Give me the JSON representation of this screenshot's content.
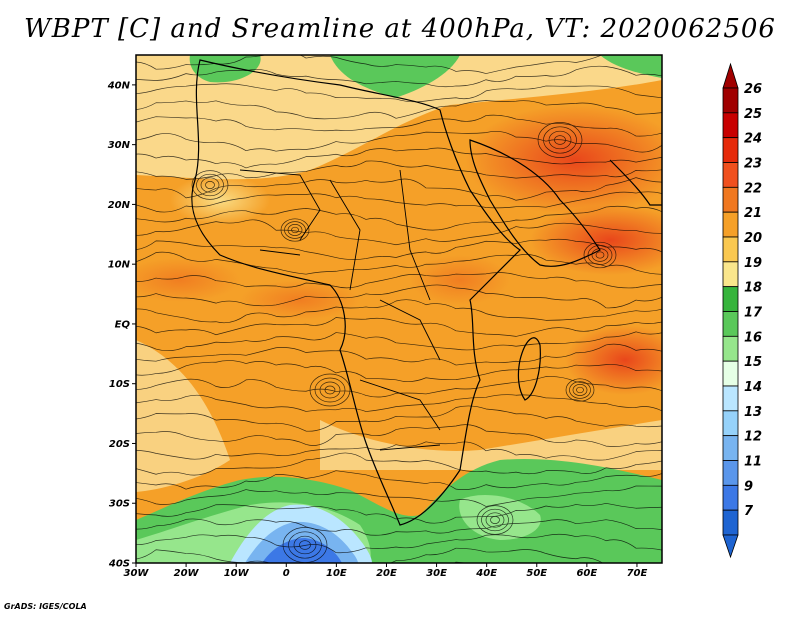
{
  "title": "WBPT [C] and Sreamline at 400hPa, VT: 2020062506",
  "credit": "GrADS: IGES/COLA",
  "map": {
    "lon_range": [
      -30,
      75
    ],
    "lat_range": [
      -40,
      45
    ],
    "lat_ticks": [
      {
        "value": 40,
        "label": "40N"
      },
      {
        "value": 30,
        "label": "30N"
      },
      {
        "value": 20,
        "label": "20N"
      },
      {
        "value": 10,
        "label": "10N"
      },
      {
        "value": 0,
        "label": "EQ"
      },
      {
        "value": -10,
        "label": "10S"
      },
      {
        "value": -20,
        "label": "20S"
      },
      {
        "value": -30,
        "label": "30S"
      },
      {
        "value": -40,
        "label": "40S"
      }
    ],
    "lon_ticks": [
      {
        "value": -30,
        "label": "30W"
      },
      {
        "value": -20,
        "label": "20W"
      },
      {
        "value": -10,
        "label": "10W"
      },
      {
        "value": 0,
        "label": "0"
      },
      {
        "value": 10,
        "label": "10E"
      },
      {
        "value": 20,
        "label": "20E"
      },
      {
        "value": 30,
        "label": "30E"
      },
      {
        "value": 40,
        "label": "40E"
      },
      {
        "value": 50,
        "label": "50E"
      },
      {
        "value": 60,
        "label": "60E"
      },
      {
        "value": 70,
        "label": "70E"
      }
    ]
  },
  "colorbar": {
    "levels": [
      {
        "label": "26",
        "color": "#a00000"
      },
      {
        "label": "25",
        "color": "#c80000"
      },
      {
        "label": "24",
        "color": "#e62a0a"
      },
      {
        "label": "23",
        "color": "#f0501e"
      },
      {
        "label": "22",
        "color": "#f07820"
      },
      {
        "label": "21",
        "color": "#f5a028"
      },
      {
        "label": "20",
        "color": "#fac850"
      },
      {
        "label": "19",
        "color": "#fae68c"
      },
      {
        "label": "18",
        "color": "#36b43c"
      },
      {
        "label": "17",
        "color": "#5ac85a"
      },
      {
        "label": "16",
        "color": "#96e68c"
      },
      {
        "label": "15",
        "color": "#e6ffe6"
      },
      {
        "label": "14",
        "color": "#bae6ff"
      },
      {
        "label": "13",
        "color": "#96d2fa"
      },
      {
        "label": "12",
        "color": "#78b4f0"
      },
      {
        "label": "11",
        "color": "#5a96eb"
      },
      {
        "label": "9",
        "color": "#3c78e6"
      },
      {
        "label": "7",
        "color": "#1e64d2"
      }
    ]
  }
}
